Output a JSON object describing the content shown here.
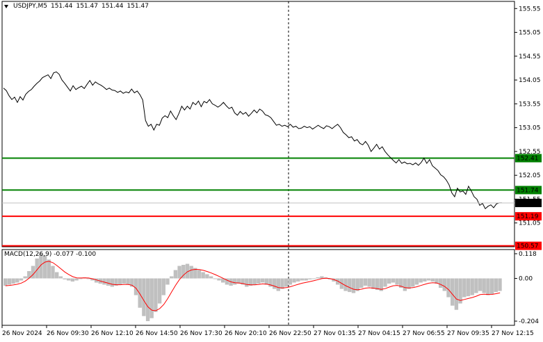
{
  "symbol": {
    "name": "USDJPY,M5",
    "open": "151.44",
    "high": "151.47",
    "low": "151.44",
    "close": "151.47"
  },
  "macd": {
    "label": "MACD(12,26,9)",
    "main": "-0.077",
    "signal": "-0.100",
    "scale_top": "0.118",
    "scale_mid": "0.00",
    "scale_bottom": "-0.204"
  },
  "price_axis": [
    "155.55",
    "155.05",
    "154.55",
    "154.05",
    "153.55",
    "153.05",
    "152.55",
    "152.05",
    "151.55",
    "151.05"
  ],
  "time_axis": [
    "26 Nov 2024",
    "26 Nov 09:30",
    "26 Nov 12:10",
    "26 Nov 14:50",
    "26 Nov 17:30",
    "26 Nov 20:10",
    "26 Nov 22:50",
    "27 Nov 01:35",
    "27 Nov 04:15",
    "27 Nov 06:55",
    "27 Nov 09:35",
    "27 Nov 12:15"
  ],
  "levels": [
    {
      "value": 152.41,
      "label": "152.41",
      "color": "#008000"
    },
    {
      "value": 151.74,
      "label": "151.74",
      "color": "#008000"
    },
    {
      "value": 151.19,
      "label": "151.19",
      "color": "#ff0000"
    },
    {
      "value": 150.57,
      "label": "150.57",
      "color": "#ff0000"
    }
  ],
  "current_price": {
    "value": 151.47,
    "label": "151.47"
  },
  "chart_data": [
    {
      "type": "line",
      "title": "USDJPY,M5",
      "ylim": [
        150.55,
        155.7
      ],
      "x_count": 180,
      "price": [
        153.88,
        153.83,
        153.72,
        153.64,
        153.69,
        153.58,
        153.7,
        153.63,
        153.75,
        153.81,
        153.85,
        153.92,
        153.98,
        154.03,
        154.1,
        154.13,
        154.16,
        154.08,
        154.2,
        154.22,
        154.17,
        154.05,
        153.98,
        153.9,
        153.82,
        153.93,
        153.85,
        153.89,
        153.92,
        153.87,
        153.96,
        154.04,
        153.94,
        154.01,
        153.97,
        153.94,
        153.9,
        153.85,
        153.88,
        153.84,
        153.83,
        153.79,
        153.82,
        153.77,
        153.8,
        153.78,
        153.86,
        153.78,
        153.82,
        153.74,
        153.63,
        153.2,
        153.08,
        153.12,
        153.0,
        153.12,
        153.1,
        153.25,
        153.3,
        153.26,
        153.4,
        153.3,
        153.22,
        153.35,
        153.5,
        153.42,
        153.5,
        153.44,
        153.58,
        153.53,
        153.61,
        153.49,
        153.6,
        153.57,
        153.64,
        153.55,
        153.52,
        153.48,
        153.52,
        153.58,
        153.51,
        153.45,
        153.48,
        153.36,
        153.31,
        153.39,
        153.33,
        153.37,
        153.29,
        153.35,
        153.42,
        153.36,
        153.44,
        153.4,
        153.32,
        153.3,
        153.26,
        153.18,
        153.1,
        153.12,
        153.08,
        153.1,
        153.07,
        153.12,
        153.06,
        153.08,
        153.03,
        153.04,
        153.08,
        153.05,
        153.07,
        153.02,
        153.06,
        153.1,
        153.06,
        153.03,
        153.09,
        153.07,
        153.03,
        153.08,
        153.12,
        153.05,
        152.95,
        152.9,
        152.84,
        152.86,
        152.77,
        152.8,
        152.72,
        152.69,
        152.76,
        152.68,
        152.55,
        152.62,
        152.7,
        152.6,
        152.65,
        152.55,
        152.48,
        152.42,
        152.36,
        152.31,
        152.38,
        152.3,
        152.33,
        152.29,
        152.3,
        152.27,
        152.31,
        152.26,
        152.32,
        152.41,
        152.3,
        152.38,
        152.25,
        152.2,
        152.15,
        152.06,
        152.02,
        151.95,
        151.85,
        151.68,
        151.6,
        151.78,
        151.7,
        151.72,
        151.65,
        151.82,
        151.72,
        151.6,
        151.55,
        151.42,
        151.46,
        151.35,
        151.4,
        151.43,
        151.37,
        151.45,
        151.47,
        151.47
      ]
    },
    {
      "type": "bar",
      "title": "MACD(12,26,9)",
      "ylim": [
        -0.204,
        0.118
      ],
      "histogram": [
        -0.035,
        -0.03,
        -0.025,
        -0.02,
        -0.01,
        0.01,
        0.035,
        0.06,
        0.095,
        0.118,
        0.11,
        0.09,
        0.06,
        0.03,
        0.01,
        -0.005,
        -0.01,
        -0.015,
        -0.01,
        0.0,
        0.005,
        0.0,
        -0.01,
        -0.02,
        -0.025,
        -0.03,
        -0.035,
        -0.04,
        -0.035,
        -0.03,
        -0.025,
        -0.03,
        -0.04,
        -0.08,
        -0.14,
        -0.18,
        -0.204,
        -0.19,
        -0.16,
        -0.12,
        -0.08,
        -0.03,
        0.01,
        0.04,
        0.06,
        0.065,
        0.07,
        0.06,
        0.05,
        0.04,
        0.03,
        0.02,
        0.01,
        0.0,
        -0.01,
        -0.02,
        -0.03,
        -0.035,
        -0.03,
        -0.025,
        -0.03,
        -0.04,
        -0.035,
        -0.03,
        -0.025,
        -0.02,
        -0.03,
        -0.04,
        -0.05,
        -0.06,
        -0.05,
        -0.04,
        -0.03,
        -0.02,
        -0.015,
        -0.01,
        -0.01,
        -0.005,
        0.0,
        0.005,
        0.01,
        0.005,
        -0.005,
        -0.015,
        -0.03,
        -0.05,
        -0.06,
        -0.065,
        -0.07,
        -0.06,
        -0.045,
        -0.035,
        -0.04,
        -0.05,
        -0.055,
        -0.06,
        -0.04,
        -0.025,
        -0.02,
        -0.03,
        -0.045,
        -0.06,
        -0.05,
        -0.04,
        -0.03,
        -0.02,
        -0.015,
        -0.01,
        -0.015,
        -0.025,
        -0.045,
        -0.06,
        -0.09,
        -0.13,
        -0.15,
        -0.12,
        -0.09,
        -0.085,
        -0.08,
        -0.07,
        -0.06,
        -0.07,
        -0.08,
        -0.075,
        -0.065,
        -0.06
      ]
    }
  ]
}
